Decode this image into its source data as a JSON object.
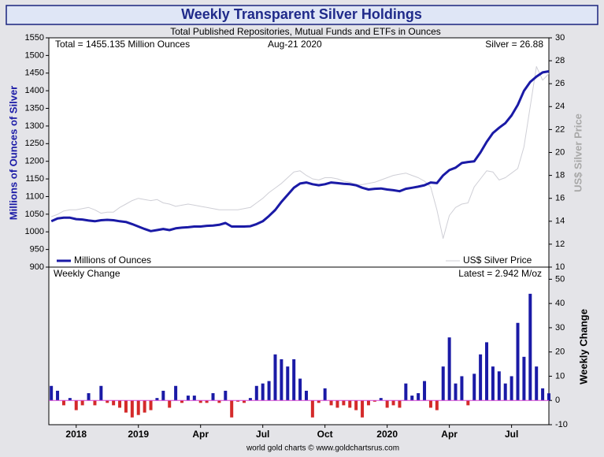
{
  "chart_data": [
    {
      "type": "line",
      "title": "Weekly Transparent Silver Holdings",
      "subtitle": "Total Published Repositories, Mutual Funds and ETFs in Ounces",
      "annotations": [
        "Total = 1455.135 Million Ounces",
        "Aug-21  2020",
        "Silver = 26.88"
      ],
      "ylabel": "Millions of Ounces of Silver",
      "y2label": "US$ Silver Price",
      "xlim": [
        2018.64,
        2020.65
      ],
      "ylim": [
        900,
        1550
      ],
      "yticks": [
        900,
        950,
        1000,
        1050,
        1100,
        1150,
        1200,
        1250,
        1300,
        1350,
        1400,
        1450,
        1500,
        1550
      ],
      "y2lim": [
        10,
        30
      ],
      "y2ticks": [
        10,
        12,
        14,
        16,
        18,
        20,
        22,
        24,
        26,
        28,
        30
      ],
      "legend": "bottom",
      "x": [
        2018.65,
        2018.675,
        2018.7,
        2018.725,
        2018.75,
        2018.775,
        2018.8,
        2018.825,
        2018.85,
        2018.875,
        2018.9,
        2018.925,
        2018.95,
        2018.975,
        2019,
        2019.025,
        2019.05,
        2019.075,
        2019.1,
        2019.125,
        2019.15,
        2019.175,
        2019.2,
        2019.225,
        2019.25,
        2019.275,
        2019.3,
        2019.325,
        2019.35,
        2019.375,
        2019.4,
        2019.425,
        2019.45,
        2019.475,
        2019.5,
        2019.525,
        2019.55,
        2019.575,
        2019.6,
        2019.625,
        2019.65,
        2019.675,
        2019.7,
        2019.725,
        2019.75,
        2019.775,
        2019.8,
        2019.825,
        2019.85,
        2019.875,
        2019.9,
        2019.925,
        2019.95,
        2019.975,
        2020,
        2020.025,
        2020.05,
        2020.075,
        2020.1,
        2020.125,
        2020.15,
        2020.175,
        2020.2,
        2020.225,
        2020.25,
        2020.275,
        2020.3,
        2020.325,
        2020.35,
        2020.375,
        2020.4,
        2020.425,
        2020.45,
        2020.475,
        2020.5,
        2020.525,
        2020.55,
        2020.575,
        2020.6,
        2020.625,
        2020.65
      ],
      "series": [
        {
          "name": "US$ Silver Price",
          "color": "#cfcfd6",
          "axis": "y2",
          "width": 1,
          "values": [
            14.4,
            14.6,
            14.9,
            15.0,
            15.0,
            15.1,
            15.2,
            15.0,
            14.7,
            14.8,
            14.8,
            15.2,
            15.5,
            15.8,
            16.0,
            15.9,
            15.8,
            15.9,
            15.6,
            15.5,
            15.3,
            15.4,
            15.5,
            15.4,
            15.3,
            15.2,
            15.1,
            15.0,
            15.0,
            15.0,
            15.0,
            15.1,
            15.2,
            15.6,
            16.0,
            16.5,
            16.9,
            17.3,
            17.8,
            18.3,
            18.4,
            18.0,
            17.7,
            17.6,
            17.8,
            17.8,
            17.7,
            17.5,
            17.4,
            17.2,
            17.2,
            17.3,
            17.4,
            17.6,
            17.8,
            18.0,
            18.1,
            18.2,
            18.0,
            17.8,
            17.5,
            17.0,
            15.0,
            12.5,
            14.5,
            15.2,
            15.5,
            15.6,
            17.0,
            17.7,
            18.4,
            18.3,
            17.6,
            17.8,
            18.2,
            18.6,
            20.5,
            24.0,
            27.5,
            26.3,
            26.88
          ]
        },
        {
          "name": "Millions of Ounces",
          "color": "#1a1aa6",
          "axis": "y",
          "width": 3,
          "values": [
            1030,
            1038,
            1040,
            1040,
            1036,
            1035,
            1032,
            1030,
            1033,
            1034,
            1033,
            1030,
            1028,
            1022,
            1015,
            1008,
            1002,
            1005,
            1008,
            1005,
            1010,
            1012,
            1013,
            1015,
            1015,
            1017,
            1018,
            1020,
            1025,
            1015,
            1015,
            1015,
            1016,
            1022,
            1030,
            1045,
            1062,
            1085,
            1105,
            1125,
            1137,
            1140,
            1135,
            1132,
            1135,
            1140,
            1138,
            1136,
            1135,
            1132,
            1125,
            1120,
            1122,
            1123,
            1120,
            1118,
            1115,
            1122,
            1125,
            1128,
            1132,
            1140,
            1138,
            1160,
            1175,
            1182,
            1195,
            1198,
            1200,
            1225,
            1255,
            1280,
            1295,
            1308,
            1330,
            1360,
            1400,
            1425,
            1440,
            1452,
            1455.135
          ]
        }
      ]
    },
    {
      "type": "bar",
      "annotations": [
        "Weekly Change",
        "Latest = 2.942 M/oz"
      ],
      "ylabel": "Weekly Change",
      "yaxis_side": "right",
      "xlim": [
        2018.64,
        2020.65
      ],
      "xticks": [
        {
          "value": 2018.75,
          "label": "2018"
        },
        {
          "value": 2019,
          "label": "2019"
        },
        {
          "value": 2019.25,
          "label": "Apr"
        },
        {
          "value": 2019.5,
          "label": "Jul"
        },
        {
          "value": 2019.75,
          "label": "Oct"
        },
        {
          "value": 2020,
          "label": "2020"
        },
        {
          "value": 2020.25,
          "label": "Apr"
        },
        {
          "value": 2020.5,
          "label": "Jul"
        }
      ],
      "ylim": [
        -10,
        55
      ],
      "yticks": [
        -10,
        0,
        10,
        20,
        30,
        40,
        50
      ],
      "color": "#1a1aa6",
      "negative_color": "#d42a2a",
      "zero_line_color": "#d040d0",
      "x": [
        2018.65,
        2018.675,
        2018.7,
        2018.725,
        2018.75,
        2018.775,
        2018.8,
        2018.825,
        2018.85,
        2018.875,
        2018.9,
        2018.925,
        2018.95,
        2018.975,
        2019,
        2019.025,
        2019.05,
        2019.075,
        2019.1,
        2019.125,
        2019.15,
        2019.175,
        2019.2,
        2019.225,
        2019.25,
        2019.275,
        2019.3,
        2019.325,
        2019.35,
        2019.375,
        2019.4,
        2019.425,
        2019.45,
        2019.475,
        2019.5,
        2019.525,
        2019.55,
        2019.575,
        2019.6,
        2019.625,
        2019.65,
        2019.675,
        2019.7,
        2019.725,
        2019.75,
        2019.775,
        2019.8,
        2019.825,
        2019.85,
        2019.875,
        2019.9,
        2019.925,
        2019.95,
        2019.975,
        2020,
        2020.025,
        2020.05,
        2020.075,
        2020.1,
        2020.125,
        2020.15,
        2020.175,
        2020.2,
        2020.225,
        2020.25,
        2020.275,
        2020.3,
        2020.325,
        2020.35,
        2020.375,
        2020.4,
        2020.425,
        2020.45,
        2020.475,
        2020.5,
        2020.525,
        2020.55,
        2020.575,
        2020.6,
        2020.625,
        2020.65
      ],
      "values": [
        6,
        4,
        -2,
        1,
        -4,
        -2,
        3,
        -2,
        6,
        -1,
        -2,
        -3,
        -5,
        -7,
        -6,
        -5,
        -4,
        1,
        4,
        -3,
        6,
        -1,
        2,
        2,
        -1,
        -1,
        3,
        -1,
        4,
        -7,
        -0.5,
        -1,
        1,
        6,
        7,
        8,
        19,
        17,
        14,
        17,
        9,
        4,
        -7,
        -1,
        5,
        -2,
        -3,
        -2,
        -3,
        -4,
        -7,
        -2,
        -0.5,
        1,
        -3,
        -2,
        -3,
        7,
        2,
        3,
        8,
        -3,
        -4,
        14,
        26,
        7,
        10,
        -2,
        11,
        19,
        24,
        14,
        12,
        7,
        10,
        32,
        18,
        44,
        14,
        5,
        2.942
      ],
      "source": "world gold charts © www.goldchartsrus.com"
    }
  ]
}
